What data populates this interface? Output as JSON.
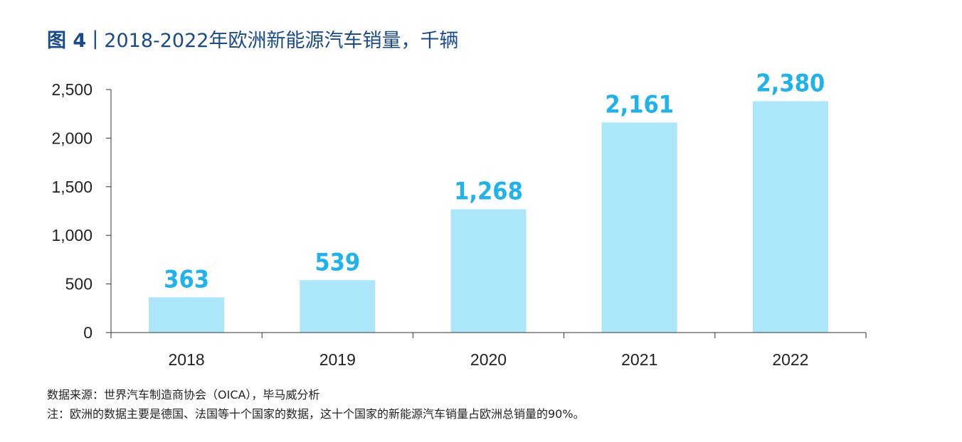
{
  "header": {
    "figure_label": "图 4",
    "separator": "|",
    "title": "2018-2022年欧洲新能源汽车销量，千辆"
  },
  "chart_data": {
    "type": "bar",
    "title": "2018-2022年欧洲新能源汽车销量，千辆",
    "categories": [
      "2018",
      "2019",
      "2020",
      "2021",
      "2022"
    ],
    "values": [
      363,
      539,
      1268,
      2161,
      2380
    ],
    "value_labels": [
      "363",
      "539",
      "1,268",
      "2,161",
      "2,380"
    ],
    "yticks": [
      0,
      500,
      1000,
      1500,
      2000,
      2500
    ],
    "ytick_labels": [
      "0",
      "500",
      "1,000",
      "1,500",
      "2,000",
      "2,500"
    ],
    "ylim": [
      0,
      2500
    ],
    "xlabel": "",
    "ylabel": "",
    "grid": false,
    "legend": "none",
    "bar_color": "#abe6fb",
    "label_color": "#1fb3ec",
    "axis_color": "#333333"
  },
  "footer": {
    "source": "数据来源：世界汽车制造商协会（OICA），毕马威分析",
    "note": "注：欧洲的数据主要是德国、法国等十个国家的数据，这十个国家的新能源汽车销量占欧洲总销量的90%。"
  }
}
